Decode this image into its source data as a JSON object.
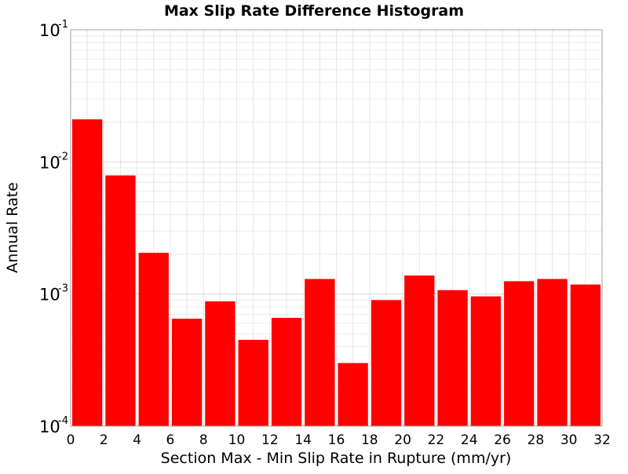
{
  "chart_data": {
    "type": "bar",
    "title": "Max Slip Rate Difference Histogram",
    "xlabel": "Section Max - Min Slip Rate in Rupture (mm/yr)",
    "ylabel": "Annual Rate",
    "y_scale": "log",
    "xlim": [
      0,
      32
    ],
    "ylim": [
      0.0001,
      0.1
    ],
    "bar_color": "#ff0000",
    "grid": true,
    "x_ticks": [
      "0",
      "2",
      "4",
      "6",
      "8",
      "10",
      "12",
      "14",
      "16",
      "18",
      "20",
      "22",
      "24",
      "26",
      "28",
      "30",
      "32"
    ],
    "y_ticks": [
      {
        "base": "10",
        "exponent": "-4",
        "value": 0.0001
      },
      {
        "base": "10",
        "exponent": "-3",
        "value": 0.001
      },
      {
        "base": "10",
        "exponent": "-2",
        "value": 0.01
      },
      {
        "base": "10",
        "exponent": "-1",
        "value": 0.1
      }
    ],
    "bins": [
      {
        "x_start": 0,
        "x_end": 2,
        "value": 0.021
      },
      {
        "x_start": 2,
        "x_end": 4,
        "value": 0.0079
      },
      {
        "x_start": 4,
        "x_end": 6,
        "value": 0.00205
      },
      {
        "x_start": 6,
        "x_end": 8,
        "value": 0.00065
      },
      {
        "x_start": 8,
        "x_end": 10,
        "value": 0.00088
      },
      {
        "x_start": 10,
        "x_end": 12,
        "value": 0.00045
      },
      {
        "x_start": 12,
        "x_end": 14,
        "value": 0.00066
      },
      {
        "x_start": 14,
        "x_end": 16,
        "value": 0.0013
      },
      {
        "x_start": 16,
        "x_end": 18,
        "value": 0.0003
      },
      {
        "x_start": 18,
        "x_end": 20,
        "value": 0.0009
      },
      {
        "x_start": 20,
        "x_end": 22,
        "value": 0.00138
      },
      {
        "x_start": 22,
        "x_end": 24,
        "value": 0.00107
      },
      {
        "x_start": 24,
        "x_end": 26,
        "value": 0.00096
      },
      {
        "x_start": 26,
        "x_end": 28,
        "value": 0.00125
      },
      {
        "x_start": 28,
        "x_end": 30,
        "value": 0.0013
      },
      {
        "x_start": 30,
        "x_end": 32,
        "value": 0.00118
      }
    ]
  }
}
